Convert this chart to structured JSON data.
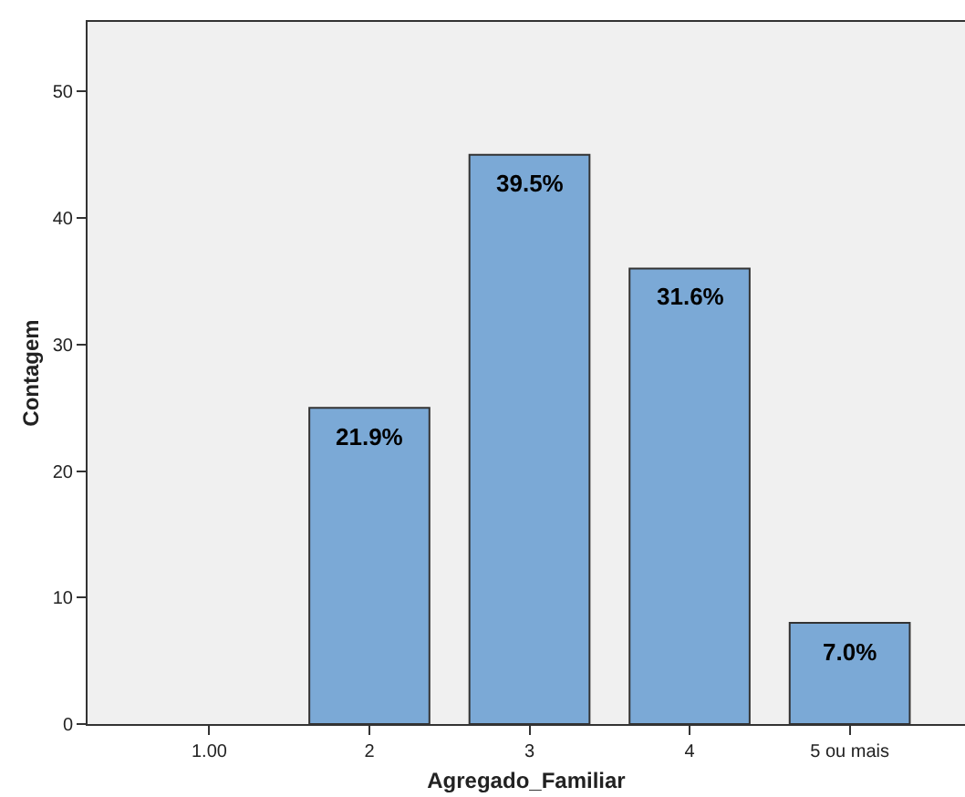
{
  "chart_data": {
    "type": "bar",
    "xlabel": "Agregado_Familiar",
    "ylabel": "Contagem",
    "categories": [
      "1.00",
      "2",
      "3",
      "4",
      "5 ou mais"
    ],
    "values": [
      null,
      25,
      45,
      36,
      8
    ],
    "annotations": [
      {
        "text": "21.9%",
        "x": "2",
        "y": 25
      },
      {
        "text": "39.5%",
        "x": "3",
        "y": 45
      },
      {
        "text": "31.6%",
        "x": "4",
        "y": 36
      },
      {
        "text": "7.0%",
        "x": "5 ou mais",
        "y": 8
      }
    ],
    "color": "#7ba9d6",
    "ylim": [
      0,
      55.5
    ],
    "yticks": [
      0,
      10,
      20,
      30,
      40,
      50
    ],
    "grid": false,
    "legend": false
  }
}
